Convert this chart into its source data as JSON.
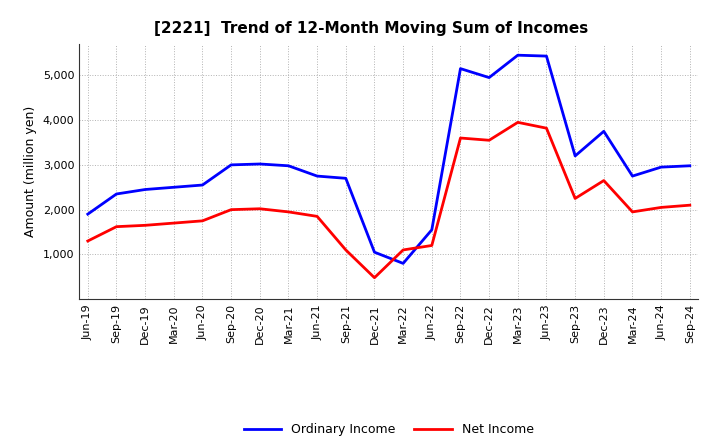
{
  "title": "[2221]  Trend of 12-Month Moving Sum of Incomes",
  "ylabel": "Amount (million yen)",
  "x_labels": [
    "Jun-19",
    "Sep-19",
    "Dec-19",
    "Mar-20",
    "Jun-20",
    "Sep-20",
    "Dec-20",
    "Mar-21",
    "Jun-21",
    "Sep-21",
    "Dec-21",
    "Mar-22",
    "Jun-22",
    "Sep-22",
    "Dec-22",
    "Mar-23",
    "Jun-23",
    "Sep-23",
    "Dec-23",
    "Mar-24",
    "Jun-24",
    "Sep-24"
  ],
  "ordinary_income": [
    1900,
    2350,
    2450,
    2500,
    2550,
    3000,
    3020,
    2980,
    2750,
    2700,
    1050,
    800,
    1550,
    5150,
    4950,
    5450,
    5430,
    3200,
    3750,
    2750,
    2950,
    2980
  ],
  "net_income": [
    1300,
    1620,
    1650,
    1700,
    1750,
    2000,
    2020,
    1950,
    1850,
    1100,
    480,
    1100,
    1200,
    3600,
    3550,
    3950,
    3820,
    2250,
    2650,
    1950,
    2050,
    2100
  ],
  "ordinary_color": "#0000FF",
  "net_color": "#FF0000",
  "ylim_min": 0,
  "ylim_max": 5700,
  "yticks": [
    1000,
    2000,
    3000,
    4000,
    5000
  ],
  "grid_color": "#aaaaaa",
  "background_color": "#ffffff",
  "plot_bg_color": "#ffffff",
  "title_fontsize": 11,
  "axis_fontsize": 9,
  "tick_fontsize": 8,
  "legend_fontsize": 9,
  "line_width": 2.0
}
